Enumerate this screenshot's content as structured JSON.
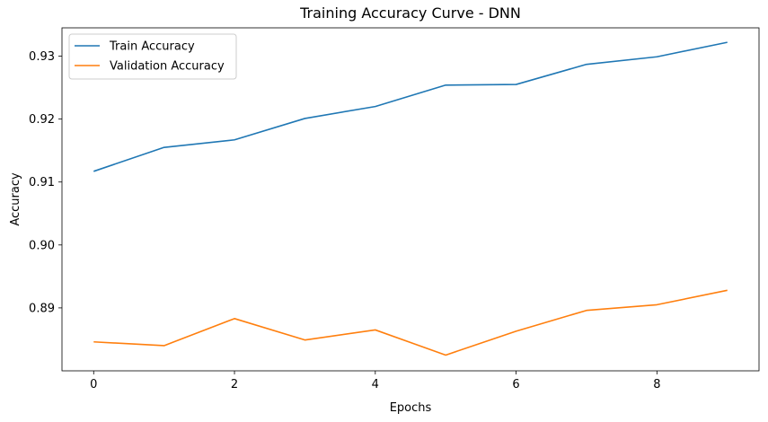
{
  "chart_data": {
    "type": "line",
    "title": "Training Accuracy Curve - DNN",
    "xlabel": "Epochs",
    "ylabel": "Accuracy",
    "x": [
      0,
      1,
      2,
      3,
      4,
      5,
      6,
      7,
      8,
      9
    ],
    "xlim": [
      -0.45,
      9.45
    ],
    "ylim": [
      0.88,
      0.9345
    ],
    "xticks": [
      0,
      2,
      4,
      6,
      8
    ],
    "yticks": [
      0.89,
      0.9,
      0.91,
      0.92,
      0.93
    ],
    "ytick_labels": [
      "0.89",
      "0.90",
      "0.91",
      "0.92",
      "0.93"
    ],
    "grid": false,
    "legend_position": "upper-left",
    "series": [
      {
        "name": "Train Accuracy",
        "color": "#1f77b4",
        "values": [
          0.9117,
          0.9155,
          0.9167,
          0.9201,
          0.922,
          0.9254,
          0.9255,
          0.9287,
          0.9299,
          0.9322
        ]
      },
      {
        "name": "Validation Accuracy",
        "color": "#ff7f0e",
        "values": [
          0.8846,
          0.884,
          0.8883,
          0.8849,
          0.8865,
          0.8825,
          0.8863,
          0.8896,
          0.8905,
          0.8928
        ]
      }
    ]
  }
}
